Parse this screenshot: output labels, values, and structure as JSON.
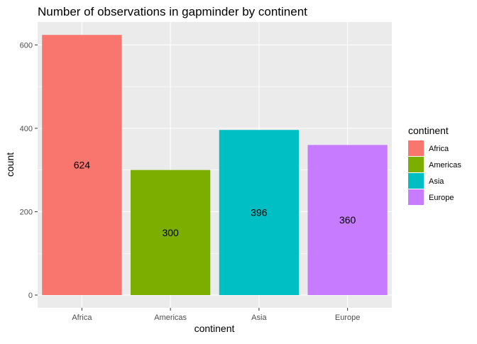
{
  "chart_data": {
    "type": "bar",
    "title": "Number of observations in gapminder by continent",
    "xlabel": "continent",
    "ylabel": "count",
    "categories": [
      "Africa",
      "Americas",
      "Asia",
      "Europe"
    ],
    "values": [
      624,
      300,
      396,
      360
    ],
    "data_labels": [
      "624",
      "300",
      "396",
      "360"
    ],
    "colors": [
      "#F8766D",
      "#7CAE00",
      "#00BFC4",
      "#C77CFF"
    ],
    "ylim": [
      0,
      655
    ],
    "yticks": [
      0,
      200,
      400,
      600
    ],
    "ytick_labels": [
      "0",
      "200",
      "400",
      "600"
    ],
    "grid": true,
    "panel_background": "#EBEBEB",
    "gridline_color": "#FFFFFF",
    "legend": {
      "title": "continent",
      "position": "right",
      "entries": [
        "Africa",
        "Americas",
        "Asia",
        "Europe"
      ]
    }
  }
}
